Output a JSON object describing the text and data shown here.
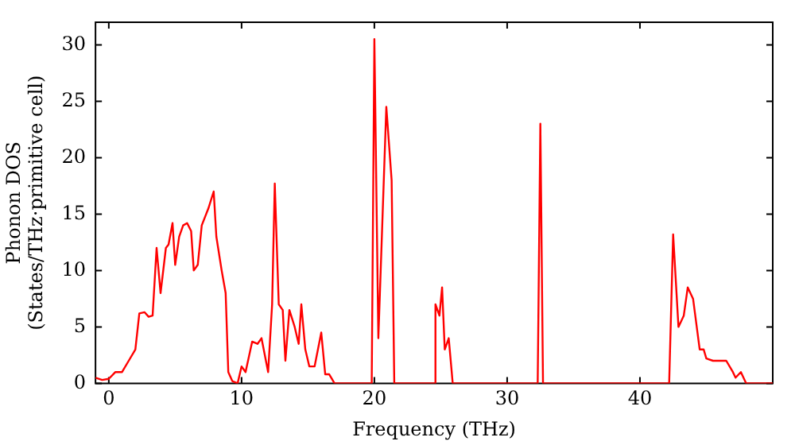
{
  "chart_data": {
    "type": "line",
    "xlabel": "Frequency (THz)",
    "ylabel": "Phonon DOS\n(States/THz·primitive cell)",
    "xlim": [
      -1,
      50
    ],
    "ylim": [
      0,
      32
    ],
    "xticks": [
      0,
      10,
      20,
      30,
      40
    ],
    "yticks": [
      0,
      5,
      10,
      15,
      20,
      25,
      30
    ],
    "grid": false,
    "legend": false,
    "marker": "none",
    "line_style": "solid",
    "x": [
      -1,
      -0.5,
      0,
      0.5,
      1,
      1.5,
      2,
      2.3,
      2.7,
      3,
      3.3,
      3.6,
      3.9,
      4.3,
      4.5,
      4.8,
      5,
      5.3,
      5.6,
      5.9,
      6.2,
      6.4,
      6.7,
      7,
      7.5,
      7.9,
      8.1,
      8.5,
      8.8,
      9,
      9.3,
      9.7,
      10,
      10.3,
      10.8,
      11.2,
      11.5,
      12,
      12.3,
      12.5,
      12.8,
      13.1,
      13.3,
      13.6,
      14,
      14.3,
      14.5,
      14.8,
      15.1,
      15.5,
      16,
      16.3,
      16.6,
      17,
      19.8,
      20,
      20.3,
      20.9,
      21.3,
      21.5,
      24.5,
      24.6,
      24.9,
      25.1,
      25.3,
      25.6,
      25.9,
      32.3,
      32.5,
      32.7,
      42.2,
      42.5,
      42.9,
      43.3,
      43.6,
      44,
      44.5,
      44.8,
      45,
      45.5,
      46.5,
      47,
      47.2,
      47.6,
      48,
      50
    ],
    "series": [
      {
        "color": "#ff0000",
        "values": [
          0.5,
          0.3,
          0.4,
          1,
          1,
          2,
          3,
          6.2,
          6.3,
          5.9,
          6,
          12,
          8,
          12,
          12.3,
          14.2,
          10.5,
          13,
          14,
          14.2,
          13.5,
          10,
          10.5,
          14,
          15.5,
          17,
          13,
          10,
          8,
          1,
          0.2,
          0,
          1.5,
          1,
          3.7,
          3.5,
          4,
          1,
          7,
          17.7,
          7,
          6.5,
          2,
          6.5,
          5,
          3.5,
          7,
          3,
          1.5,
          1.5,
          4.5,
          0.8,
          0.8,
          0,
          0,
          30.5,
          4,
          24.5,
          18,
          0,
          0,
          7,
          6,
          8.5,
          3,
          4,
          0,
          0,
          23,
          0,
          0,
          13.2,
          5,
          6,
          8.5,
          7.5,
          3,
          3,
          2.2,
          2,
          2,
          1,
          0.5,
          1,
          0,
          0
        ]
      }
    ]
  }
}
